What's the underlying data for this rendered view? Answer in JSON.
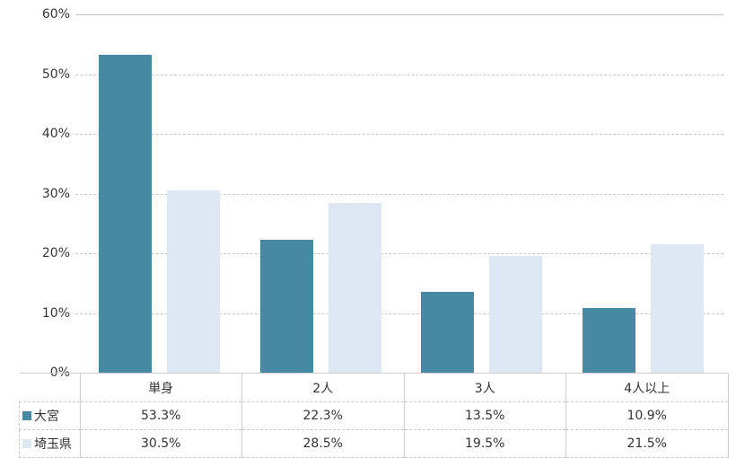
{
  "chart_data": {
    "type": "bar",
    "title": "",
    "xlabel": "",
    "ylabel": "",
    "categories": [
      "単身",
      "2人",
      "3人",
      "4人以上"
    ],
    "series": [
      {
        "name": "大宮",
        "color": "#4789A3",
        "values": [
          53.3,
          22.3,
          13.5,
          10.9
        ]
      },
      {
        "name": "埼玉県",
        "color": "#DDE8F4",
        "values": [
          30.5,
          28.5,
          19.5,
          21.5
        ]
      }
    ],
    "ylim": [
      0,
      60
    ],
    "yticks": [
      "0%",
      "10%",
      "20%",
      "30%",
      "40%",
      "50%",
      "60%"
    ],
    "grid": "horizontal-dashed",
    "legend_position": "data-table-left"
  },
  "table": {
    "headers": [
      "単身",
      "2人",
      "3人",
      "4人以上"
    ],
    "rows": [
      {
        "legend": "大宮",
        "key_color": "#4789A3",
        "cells": [
          "53.3%",
          "22.3%",
          "13.5%",
          "10.9%"
        ]
      },
      {
        "legend": "埼玉県",
        "key_color": "#DDE8F4",
        "cells": [
          "30.5%",
          "28.5%",
          "19.5%",
          "21.5%"
        ]
      }
    ]
  },
  "colors": {
    "series_dark": "#4789A3",
    "series_light": "#DDE8F4",
    "gridline": "#C9C9C9",
    "table_border": "#CCCCCC",
    "text": "#333333",
    "background": "#FFFFFF"
  }
}
